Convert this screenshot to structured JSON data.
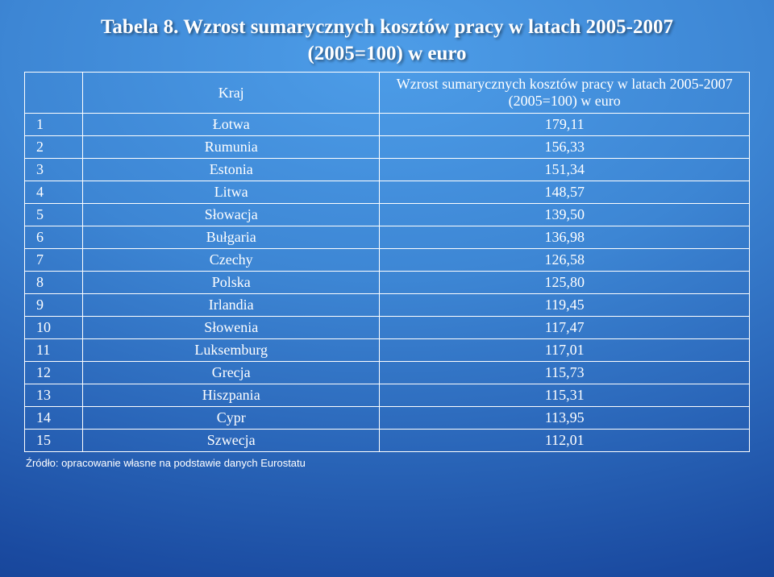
{
  "title": "Tabela 8. Wzrost sumarycznych kosztów pracy w latach 2005-2007",
  "subtitle": "(2005=100) w euro",
  "table": {
    "headers": {
      "col1": "",
      "col2": "Kraj",
      "col3": "Wzrost sumarycznych kosztów pracy w latach 2005-2007 (2005=100) w euro"
    },
    "rows": [
      {
        "idx": "1",
        "country": "Łotwa",
        "value": "179,11"
      },
      {
        "idx": "2",
        "country": "Rumunia",
        "value": "156,33"
      },
      {
        "idx": "3",
        "country": "Estonia",
        "value": "151,34"
      },
      {
        "idx": "4",
        "country": "Litwa",
        "value": "148,57"
      },
      {
        "idx": "5",
        "country": "Słowacja",
        "value": "139,50"
      },
      {
        "idx": "6",
        "country": "Bułgaria",
        "value": "136,98"
      },
      {
        "idx": "7",
        "country": "Czechy",
        "value": "126,58"
      },
      {
        "idx": "8",
        "country": "Polska",
        "value": "125,80"
      },
      {
        "idx": "9",
        "country": "Irlandia",
        "value": "119,45"
      },
      {
        "idx": "10",
        "country": "Słowenia",
        "value": "117,47"
      },
      {
        "idx": "11",
        "country": "Luksemburg",
        "value": "117,01"
      },
      {
        "idx": "12",
        "country": "Grecja",
        "value": "115,73"
      },
      {
        "idx": "13",
        "country": "Hiszpania",
        "value": "115,31"
      },
      {
        "idx": "14",
        "country": "Cypr",
        "value": "113,95"
      },
      {
        "idx": "15",
        "country": "Szwecja",
        "value": "112,01"
      }
    ]
  },
  "footnote": "Źródło: opracowanie własne na podstawie danych Eurostatu",
  "style": {
    "text_color": "#ffffff",
    "border_color": "#ffffff",
    "title_fontsize_pt": 19,
    "body_fontsize_pt": 14,
    "footnote_fontsize_pt": 10,
    "font_family": "Times New Roman",
    "background_gradient": {
      "inner": "#4d9de8",
      "mid": "#2a66b9",
      "outer": "#123d8f"
    },
    "table_col_widths_pct": [
      8,
      41,
      51
    ]
  }
}
